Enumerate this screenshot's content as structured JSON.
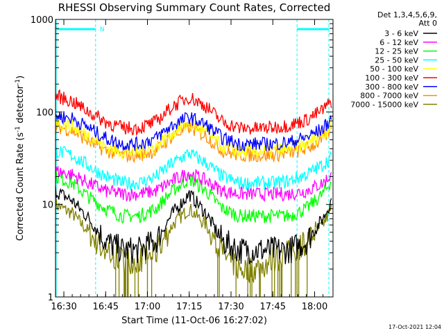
{
  "chart_data": {
    "type": "line",
    "title": "RHESSI Observing Summary Count Rates, Corrected",
    "xlabel": "Start Time (11-Oct-06 16:27:02)",
    "ylabel_prefix": "Corrected Count Rate (s",
    "ylabel_sup1": "-1",
    "ylabel_middle": " detector",
    "ylabel_sup2": "-1",
    "ylabel_suffix": ")",
    "yscale": "log",
    "ylim": [
      1,
      1000
    ],
    "xlim_minutes": [
      16.45,
      18.11
    ],
    "x_ticks": [
      {
        "label": "16:30",
        "value": 16.5
      },
      {
        "label": "16:45",
        "value": 16.75
      },
      {
        "label": "17:00",
        "value": 17.0
      },
      {
        "label": "17:15",
        "value": 17.25
      },
      {
        "label": "17:30",
        "value": 17.5
      },
      {
        "label": "17:45",
        "value": 17.75
      },
      {
        "label": "18:00",
        "value": 18.0
      }
    ],
    "y_ticks": [
      {
        "label": "1",
        "value": 1
      },
      {
        "label": "10",
        "value": 10
      },
      {
        "label": "100",
        "value": 100
      },
      {
        "label": "1000",
        "value": 1000
      }
    ],
    "night_marker_label": "N",
    "night_intervals": [
      [
        16.45,
        16.69
      ],
      [
        17.895,
        18.085
      ]
    ],
    "legend_header": [
      "Det 1,3,4,5,6,9,",
      "Att 0"
    ],
    "x": [
      16.45,
      16.55,
      16.65,
      16.75,
      16.85,
      16.95,
      17.05,
      17.15,
      17.25,
      17.35,
      17.45,
      17.55,
      17.65,
      17.75,
      17.85,
      17.95,
      18.05,
      18.1
    ],
    "series": [
      {
        "name": "3 - 6 keV",
        "color": "#000000",
        "values": [
          14,
          11,
          7,
          4,
          3.2,
          3.2,
          4,
          8,
          13,
          8,
          4,
          3.2,
          3.2,
          3.2,
          3.2,
          4,
          7,
          11
        ]
      },
      {
        "name": "6 - 12 keV",
        "color": "#ff00ff",
        "values": [
          23,
          21,
          17,
          14,
          13,
          13,
          14,
          18,
          22,
          18,
          14,
          13,
          13,
          13,
          13,
          14,
          17,
          21
        ]
      },
      {
        "name": "12 - 25 keV",
        "color": "#00ff00",
        "values": [
          20,
          17,
          12,
          9,
          7.5,
          7.5,
          9,
          14,
          19,
          14,
          9,
          7.5,
          7.5,
          7.5,
          7.5,
          9,
          13,
          18
        ]
      },
      {
        "name": "25 - 50 keV",
        "color": "#00ffff",
        "values": [
          38,
          34,
          26,
          20,
          17,
          17,
          20,
          28,
          36,
          28,
          20,
          17,
          17,
          17,
          18,
          21,
          27,
          32
        ]
      },
      {
        "name": "50 - 100 keV",
        "color": "#ffff00",
        "values": [
          78,
          70,
          55,
          42,
          37,
          37,
          42,
          60,
          75,
          60,
          42,
          37,
          37,
          38,
          40,
          45,
          58,
          72
        ]
      },
      {
        "name": "100 - 300 keV",
        "color": "#ff0000",
        "values": [
          150,
          130,
          100,
          78,
          67,
          67,
          78,
          115,
          145,
          115,
          78,
          67,
          66,
          68,
          72,
          82,
          105,
          130
        ]
      },
      {
        "name": "300 - 800 keV",
        "color": "#0000ff",
        "values": [
          92,
          85,
          67,
          52,
          45,
          45,
          52,
          72,
          88,
          72,
          52,
          45,
          45,
          45,
          47,
          53,
          66,
          85
        ]
      },
      {
        "name": "800 - 7000 keV",
        "color": "#ff8c00",
        "values": [
          70,
          63,
          48,
          38,
          34,
          34,
          38,
          55,
          68,
          55,
          38,
          34,
          34,
          34,
          36,
          40,
          50,
          66
        ]
      },
      {
        "name": "7000 - 15000 keV",
        "color": "#808000",
        "values": [
          10,
          8,
          5,
          3,
          2.5,
          2.5,
          3,
          6,
          9,
          6,
          3,
          2,
          2,
          2.5,
          3,
          4,
          6,
          9
        ]
      }
    ]
  },
  "timestamp": "17-Oct-2021 12:04"
}
